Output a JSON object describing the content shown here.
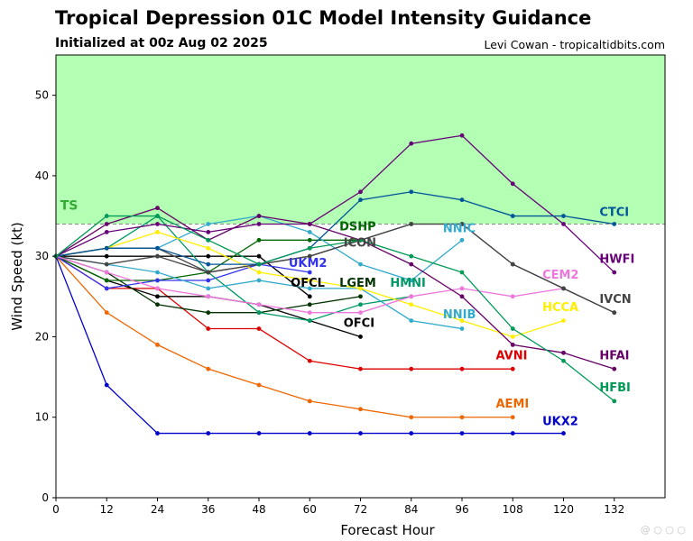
{
  "page": {
    "title": "Tropical Depression 01C Model Intensity Guidance",
    "subtitle": "Initialized at 00z Aug 02 2025",
    "credit": "Levi Cowan - tropicaltidbits.com"
  },
  "chart_data": {
    "type": "line",
    "xlabel": "Forecast Hour",
    "ylabel": "Wind Speed (kt)",
    "xlim": [
      0,
      144
    ],
    "ylim": [
      0,
      55
    ],
    "xticks": [
      0,
      12,
      24,
      36,
      48,
      60,
      72,
      84,
      96,
      108,
      120,
      132
    ],
    "yticks": [
      0,
      10,
      20,
      30,
      40,
      50
    ],
    "grid": false,
    "band": {
      "y_from": 34,
      "y_to": 55,
      "color": "#b3ffb3",
      "label": "TS",
      "label_color": "#33aa33"
    },
    "series": [
      {
        "name": "UKX2",
        "color": "#0000cc",
        "x": [
          0,
          12,
          24,
          36,
          48,
          60,
          72,
          84,
          96,
          108,
          120
        ],
        "y": [
          30,
          14,
          8,
          8,
          8,
          8,
          8,
          8,
          8,
          8,
          8
        ],
        "label_at": [
          115,
          9
        ]
      },
      {
        "name": "AEMI",
        "color": "#ee6600",
        "x": [
          0,
          12,
          24,
          36,
          48,
          60,
          72,
          84,
          96,
          108
        ],
        "y": [
          30,
          23,
          19,
          16,
          14,
          12,
          11,
          10,
          10,
          10
        ],
        "label_at": [
          104,
          11.2
        ]
      },
      {
        "name": "AVNI",
        "color": "#dd0000",
        "x": [
          0,
          12,
          24,
          36,
          48,
          60,
          72,
          84,
          96,
          108
        ],
        "y": [
          30,
          26,
          26,
          21,
          21,
          17,
          16,
          16,
          16,
          16
        ],
        "label_at": [
          104,
          17.2
        ]
      },
      {
        "name": "OFCI",
        "color": "#000000",
        "x": [
          0,
          12,
          24,
          36,
          48,
          60,
          72
        ],
        "y": [
          30,
          27,
          25,
          25,
          24,
          22,
          20
        ],
        "label_at": [
          68,
          21.2
        ]
      },
      {
        "name": "OFCL",
        "color": "#000000",
        "x": [
          0,
          12,
          24,
          36,
          48,
          60
        ],
        "y": [
          30,
          30,
          30,
          30,
          30,
          25
        ],
        "label_at": [
          55.5,
          26.2
        ]
      },
      {
        "name": "LGEM",
        "color": "#003300",
        "x": [
          0,
          12,
          24,
          36,
          48,
          60,
          72
        ],
        "y": [
          30,
          28,
          24,
          23,
          23,
          24,
          25
        ],
        "label_at": [
          67,
          26.2
        ]
      },
      {
        "name": "DSHP",
        "color": "#006600",
        "x": [
          0,
          12,
          24,
          36,
          48,
          60,
          72
        ],
        "y": [
          30,
          27,
          27,
          28,
          32,
          32,
          32
        ],
        "label_at": [
          67,
          33.2
        ]
      },
      {
        "name": "UKM2",
        "color": "#3333ee",
        "x": [
          0,
          12,
          24,
          36,
          48,
          60
        ],
        "y": [
          30,
          26,
          27,
          27,
          29,
          28
        ],
        "label_at": [
          55,
          28.7
        ]
      },
      {
        "name": "HMNI",
        "color": "#009966",
        "x": [
          0,
          12,
          24,
          36,
          48,
          60,
          72,
          84
        ],
        "y": [
          30,
          31,
          35,
          28,
          23,
          22,
          24,
          25
        ],
        "label_at": [
          79,
          26.2
        ]
      },
      {
        "name": "NNIC",
        "color": "#33aacc",
        "x": [
          0,
          12,
          24,
          36,
          48,
          60,
          72,
          84,
          96
        ],
        "y": [
          30,
          31,
          31,
          34,
          35,
          33,
          29,
          27,
          32
        ],
        "label_at": [
          91.5,
          33
        ]
      },
      {
        "name": "NNIB",
        "color": "#33aacc",
        "x": [
          0,
          12,
          24,
          36,
          48,
          60,
          72,
          84,
          96
        ],
        "y": [
          30,
          29,
          28,
          26,
          27,
          26,
          26,
          22,
          21
        ],
        "label_at": [
          91.5,
          22.3
        ]
      },
      {
        "name": "ICON",
        "color": "#444444",
        "x": [
          0,
          12,
          24,
          36,
          48,
          60,
          72,
          84,
          96,
          108,
          120,
          132
        ],
        "y": [
          30,
          29,
          30,
          28,
          29,
          30,
          32,
          34,
          34,
          29,
          26,
          23
        ],
        "label_at": [
          68,
          31.2
        ]
      },
      {
        "name": "HCCA",
        "color": "#ffee00",
        "x": [
          0,
          12,
          24,
          36,
          48,
          60,
          72,
          84,
          96,
          108,
          120
        ],
        "y": [
          30,
          31,
          33,
          31,
          28,
          27,
          26,
          24,
          22,
          20,
          22
        ],
        "label_at": [
          115,
          23.2
        ]
      },
      {
        "name": "CEM2",
        "color": "#ee77dd",
        "x": [
          0,
          12,
          24,
          36,
          48,
          60,
          72,
          84,
          96,
          108,
          120
        ],
        "y": [
          30,
          28,
          26,
          25,
          24,
          23,
          23,
          25,
          26,
          25,
          26
        ],
        "label_at": [
          115,
          27.2
        ]
      },
      {
        "name": "IVCN",
        "color": "#444444",
        "x": [
          0,
          12,
          24,
          36,
          48,
          60,
          72,
          84,
          96,
          108,
          120,
          132
        ],
        "y": [
          30,
          31,
          31,
          28,
          29,
          30,
          32,
          34,
          34,
          29,
          26,
          23
        ],
        "label_at": [
          128.5,
          24.2
        ]
      },
      {
        "name": "HWFI",
        "color": "#660077",
        "x": [
          0,
          12,
          24,
          36,
          48,
          60,
          72,
          84,
          96,
          108,
          120,
          132
        ],
        "y": [
          30,
          33,
          34,
          33,
          34,
          34,
          38,
          44,
          45,
          39,
          34,
          28
        ],
        "label_at": [
          128.5,
          29.2
        ]
      },
      {
        "name": "CTCI",
        "color": "#005599",
        "x": [
          0,
          12,
          24,
          36,
          48,
          60,
          72,
          84,
          96,
          108,
          120,
          132
        ],
        "y": [
          30,
          31,
          31,
          29,
          29,
          31,
          37,
          38,
          37,
          35,
          35,
          34
        ],
        "label_at": [
          128.5,
          35
        ]
      },
      {
        "name": "HFAI",
        "color": "#660066",
        "x": [
          0,
          12,
          24,
          36,
          48,
          60,
          72,
          84,
          96,
          108,
          120,
          132
        ],
        "y": [
          30,
          34,
          36,
          32,
          35,
          34,
          32,
          29,
          25,
          19,
          18,
          16
        ],
        "label_at": [
          128.5,
          17.2
        ]
      },
      {
        "name": "HFBI",
        "color": "#009955",
        "x": [
          0,
          12,
          24,
          36,
          48,
          60,
          72,
          84,
          96,
          108,
          120,
          132
        ],
        "y": [
          30,
          35,
          35,
          32,
          29,
          31,
          32,
          30,
          28,
          21,
          17,
          12
        ],
        "label_at": [
          128.5,
          13.2
        ]
      }
    ]
  },
  "watermark": "@ ○ ○ ○"
}
